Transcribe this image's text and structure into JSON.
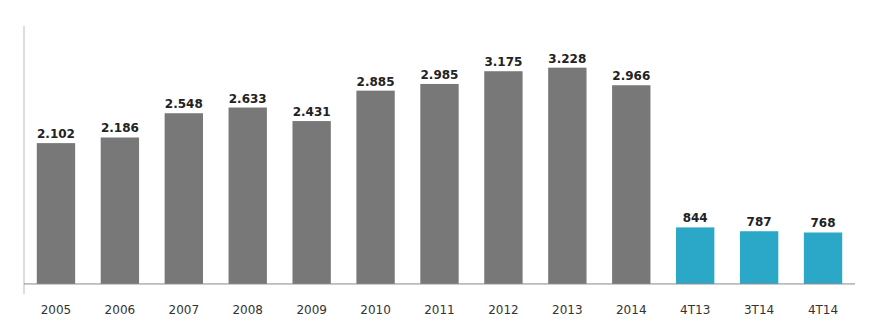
{
  "chart_data": {
    "type": "bar",
    "categories": [
      "2005",
      "2006",
      "2007",
      "2008",
      "2009",
      "2010",
      "2011",
      "2012",
      "2013",
      "2014",
      "4T13",
      "3T14",
      "4T14"
    ],
    "values": [
      2.102,
      2.186,
      2.548,
      2.633,
      2.431,
      2.885,
      2.985,
      3.175,
      3.228,
      2.966,
      0.844,
      0.787,
      0.768
    ],
    "value_labels": [
      "2.102",
      "2.186",
      "2.548",
      "2.633",
      "2.431",
      "2.885",
      "2.985",
      "3.175",
      "3.228",
      "2.966",
      "844",
      "787",
      "768"
    ],
    "colors": [
      "#787878",
      "#787878",
      "#787878",
      "#787878",
      "#787878",
      "#787878",
      "#787878",
      "#787878",
      "#787878",
      "#787878",
      "#2BA8C8",
      "#2BA8C8",
      "#2BA8C8"
    ],
    "ylim": [
      -0.15,
      3.85
    ],
    "data_labels": true,
    "grid": false,
    "tick_labels": "x"
  }
}
